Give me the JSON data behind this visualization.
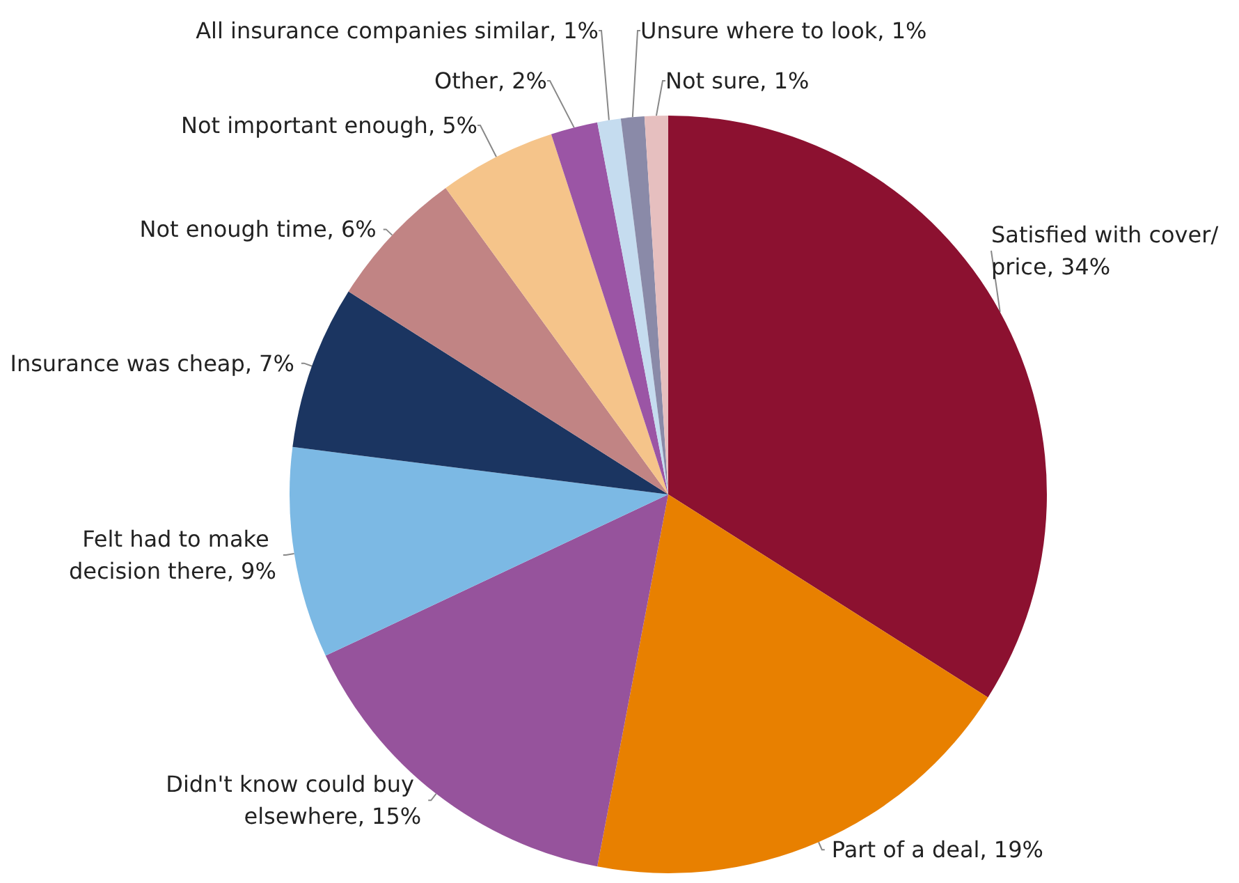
{
  "chart_data": {
    "type": "pie",
    "categories": [
      "Satisfied with cover/price",
      "Part of a deal",
      "Didn't know could buy elsewhere",
      "Felt had to make decision there",
      "Insurance was cheap",
      "Not enough time",
      "Not important enough",
      "Other",
      "All insurance companies similar",
      "Unsure where to look",
      "Not sure"
    ],
    "values": [
      34,
      19,
      15,
      9,
      7,
      6,
      5,
      2,
      1,
      1,
      1
    ],
    "value_labels": [
      "34%",
      "19%",
      "15%",
      "9%",
      "7%",
      "6%",
      "5%",
      "2%",
      "1%",
      "1%",
      "1%"
    ],
    "colors": [
      "#8c1130",
      "#e88000",
      "#96539c",
      "#7cb9e4",
      "#1b3561",
      "#c18484",
      "#f5c48a",
      "#9b55a5",
      "#c5dcef",
      "#8a8aa8",
      "#e6bfbf"
    ],
    "legend": false
  }
}
